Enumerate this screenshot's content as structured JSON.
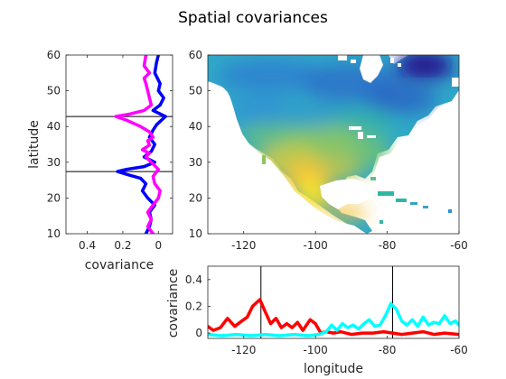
{
  "figure": {
    "title": "Spatial covariances"
  },
  "chart_data": [
    {
      "id": "latitude-covariance",
      "type": "line",
      "orientation": "vertical",
      "xlabel": "covariance",
      "ylabel": "latitude",
      "xlim": [
        0.52,
        -0.08
      ],
      "x_reversed": true,
      "ylim": [
        10,
        60
      ],
      "xticks": [
        0.4,
        0.2,
        0
      ],
      "yticks": [
        10,
        20,
        30,
        40,
        50,
        60
      ],
      "reference_latitudes": [
        42.8,
        27.4
      ],
      "series": [
        {
          "color": "#0000ff",
          "points": [
            [
              0.07,
              10
            ],
            [
              0.05,
              12
            ],
            [
              0.04,
              14
            ],
            [
              0.05,
              16
            ],
            [
              0.02,
              18
            ],
            [
              0.06,
              20
            ],
            [
              0.09,
              22
            ],
            [
              0.07,
              24
            ],
            [
              0.1,
              25.5
            ],
            [
              0.17,
              26.5
            ],
            [
              0.23,
              27.4
            ],
            [
              0.18,
              28
            ],
            [
              0.08,
              28.8
            ],
            [
              0.02,
              30
            ],
            [
              0.08,
              31.5
            ],
            [
              0.04,
              33
            ],
            [
              0.02,
              35
            ],
            [
              0.05,
              37
            ],
            [
              0.03,
              39
            ],
            [
              0.01,
              40.5
            ],
            [
              -0.04,
              42.8
            ],
            [
              0.03,
              44.5
            ],
            [
              -0.01,
              46
            ],
            [
              -0.03,
              48
            ],
            [
              0.0,
              50
            ],
            [
              -0.01,
              52
            ],
            [
              0.02,
              55
            ],
            [
              0.01,
              58
            ],
            [
              0.0,
              60
            ]
          ]
        },
        {
          "color": "#ff00ff",
          "points": [
            [
              0.03,
              10
            ],
            [
              0.06,
              12
            ],
            [
              0.04,
              14
            ],
            [
              0.06,
              16
            ],
            [
              0.03,
              18
            ],
            [
              0.0,
              20
            ],
            [
              -0.01,
              22
            ],
            [
              0.02,
              24
            ],
            [
              0.03,
              26
            ],
            [
              0.0,
              28
            ],
            [
              0.04,
              30
            ],
            [
              0.07,
              31.5
            ],
            [
              0.05,
              32.5
            ],
            [
              0.09,
              33.5
            ],
            [
              0.05,
              34.8
            ],
            [
              0.06,
              36
            ],
            [
              0.03,
              37
            ],
            [
              0.05,
              38.5
            ],
            [
              0.1,
              40
            ],
            [
              0.18,
              41.8
            ],
            [
              0.24,
              42.8
            ],
            [
              0.16,
              43.5
            ],
            [
              0.08,
              44.5
            ],
            [
              0.04,
              46
            ],
            [
              0.05,
              48
            ],
            [
              0.06,
              50
            ],
            [
              0.07,
              52
            ],
            [
              0.08,
              53.5
            ],
            [
              0.05,
              55
            ],
            [
              0.08,
              57
            ],
            [
              0.07,
              60
            ]
          ]
        }
      ]
    },
    {
      "id": "covariance-map",
      "type": "heatmap",
      "xlim": [
        -130,
        -60
      ],
      "ylim": [
        10,
        60
      ],
      "xticks": [
        -120,
        -100,
        -80,
        -60
      ],
      "yticks": [
        10,
        20,
        30,
        40,
        50,
        60
      ],
      "colormap": [
        "#2b3bb5",
        "#2f8cd6",
        "#2fb7a4",
        "#8cc55e",
        "#f5c83a",
        "#f9f71e"
      ]
    },
    {
      "id": "longitude-covariance",
      "type": "line",
      "xlabel": "longitude",
      "ylabel": "covariance",
      "xlim": [
        -130,
        -60
      ],
      "ylim": [
        -0.04,
        0.5
      ],
      "xticks": [
        -120,
        -100,
        -80,
        -60
      ],
      "yticks": [
        0,
        0.2,
        0.4
      ],
      "reference_longitudes": [
        -115.2,
        -78.5
      ],
      "series": [
        {
          "color": "#ff0000",
          "points": [
            [
              -130,
              0.05
            ],
            [
              -128.5,
              0.02
            ],
            [
              -126.5,
              0.04
            ],
            [
              -124.5,
              0.11
            ],
            [
              -122.5,
              0.05
            ],
            [
              -121,
              0.08
            ],
            [
              -119,
              0.12
            ],
            [
              -117.5,
              0.2
            ],
            [
              -115.5,
              0.25
            ],
            [
              -114,
              0.16
            ],
            [
              -112.5,
              0.07
            ],
            [
              -111,
              0.11
            ],
            [
              -109.5,
              0.04
            ],
            [
              -108,
              0.07
            ],
            [
              -106.5,
              0.04
            ],
            [
              -105,
              0.08
            ],
            [
              -103.5,
              0.02
            ],
            [
              -101.5,
              0.1
            ],
            [
              -100,
              0.07
            ],
            [
              -98.5,
              0.0
            ],
            [
              -97,
              0.01
            ],
            [
              -95,
              0.0
            ],
            [
              -93,
              0.01
            ],
            [
              -90,
              -0.01
            ],
            [
              -87,
              0.0
            ],
            [
              -84,
              0.0
            ],
            [
              -81,
              0.01
            ],
            [
              -78.5,
              0.0
            ],
            [
              -76,
              -0.01
            ],
            [
              -73,
              0.0
            ],
            [
              -70,
              0.01
            ],
            [
              -67,
              -0.01
            ],
            [
              -64,
              0.0
            ],
            [
              -60,
              -0.01
            ]
          ]
        },
        {
          "color": "#00ffff",
          "points": [
            [
              -130,
              -0.01
            ],
            [
              -126,
              -0.02
            ],
            [
              -122,
              -0.01
            ],
            [
              -118,
              -0.02
            ],
            [
              -114,
              -0.01
            ],
            [
              -110,
              -0.02
            ],
            [
              -106,
              -0.01
            ],
            [
              -102,
              -0.02
            ],
            [
              -99,
              -0.01
            ],
            [
              -97,
              0.01
            ],
            [
              -95.5,
              0.06
            ],
            [
              -94,
              0.02
            ],
            [
              -92.5,
              0.07
            ],
            [
              -91,
              0.04
            ],
            [
              -89.5,
              0.06
            ],
            [
              -88,
              0.03
            ],
            [
              -86.5,
              0.07
            ],
            [
              -85,
              0.1
            ],
            [
              -83.5,
              0.05
            ],
            [
              -82,
              0.06
            ],
            [
              -80.5,
              0.13
            ],
            [
              -79,
              0.22
            ],
            [
              -77.5,
              0.18
            ],
            [
              -76,
              0.09
            ],
            [
              -74.5,
              0.06
            ],
            [
              -73,
              0.1
            ],
            [
              -71.5,
              0.05
            ],
            [
              -70,
              0.12
            ],
            [
              -68.5,
              0.06
            ],
            [
              -67,
              0.08
            ],
            [
              -65.5,
              0.07
            ],
            [
              -64,
              0.13
            ],
            [
              -62.5,
              0.07
            ],
            [
              -61,
              0.09
            ],
            [
              -60,
              0.06
            ]
          ]
        }
      ]
    }
  ]
}
